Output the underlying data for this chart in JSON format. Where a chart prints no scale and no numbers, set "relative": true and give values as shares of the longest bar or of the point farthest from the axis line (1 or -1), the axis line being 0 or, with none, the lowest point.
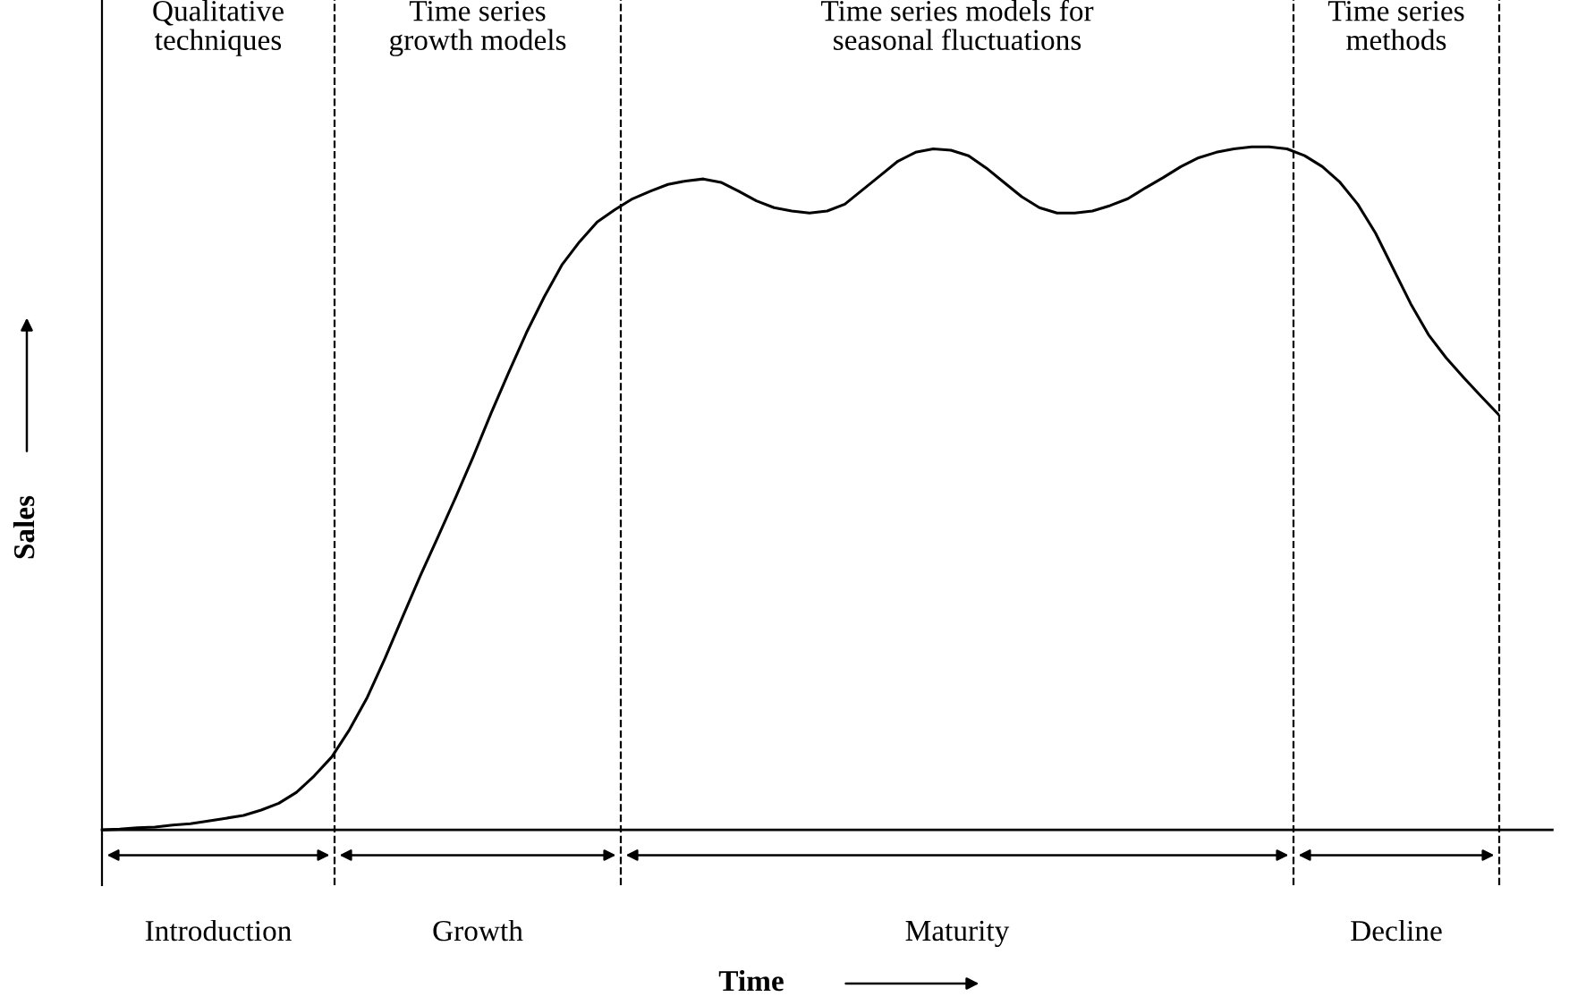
{
  "chart_data": {
    "type": "line",
    "relative": true,
    "xlabel": "Time",
    "ylabel": "Sales",
    "color": "#000000",
    "categories": [
      null,
      null,
      null,
      null,
      null,
      null,
      null,
      null,
      null,
      null,
      null,
      null,
      null,
      null,
      null,
      null,
      null,
      null,
      null,
      null,
      null,
      null,
      null,
      null,
      null,
      null,
      null,
      null,
      null,
      null,
      null,
      null,
      null,
      null,
      null,
      null,
      null,
      null,
      null,
      null,
      null,
      null,
      null,
      null,
      null,
      null,
      null,
      null,
      null,
      null,
      null,
      null,
      null,
      null,
      null,
      null,
      null,
      null,
      null,
      null,
      null,
      null,
      null,
      null,
      null,
      null,
      null,
      null,
      null,
      null,
      null,
      null,
      null,
      null,
      null,
      null,
      null,
      null,
      null,
      null
    ],
    "values": [
      0,
      0.001,
      0.003,
      0.004,
      0.007,
      0.009,
      0.013,
      0.017,
      0.021,
      0.029,
      0.039,
      0.055,
      0.079,
      0.107,
      0.147,
      0.194,
      0.251,
      0.312,
      0.372,
      0.429,
      0.487,
      0.547,
      0.61,
      0.67,
      0.728,
      0.78,
      0.827,
      0.861,
      0.89,
      0.908,
      0.924,
      0.935,
      0.945,
      0.95,
      0.953,
      0.948,
      0.935,
      0.921,
      0.911,
      0.906,
      0.903,
      0.906,
      0.916,
      0.937,
      0.958,
      0.979,
      0.992,
      0.997,
      0.995,
      0.987,
      0.969,
      0.948,
      0.927,
      0.911,
      0.903,
      0.903,
      0.906,
      0.914,
      0.924,
      0.94,
      0.955,
      0.971,
      0.984,
      0.992,
      0.997,
      1.0,
      1.0,
      0.997,
      0.987,
      0.971,
      0.948,
      0.916,
      0.874,
      0.822,
      0.77,
      0.725,
      0.691,
      0.662,
      0.634,
      0.607
    ],
    "grid": "x",
    "annotations": [
      "Qualitative\ntechniques",
      "Time series\ngrowth models",
      "Time series models for\nseasonal fluctuations",
      "Time series\nmethods",
      "Introduction",
      "Growth",
      "Maturity",
      "Decline"
    ]
  }
}
